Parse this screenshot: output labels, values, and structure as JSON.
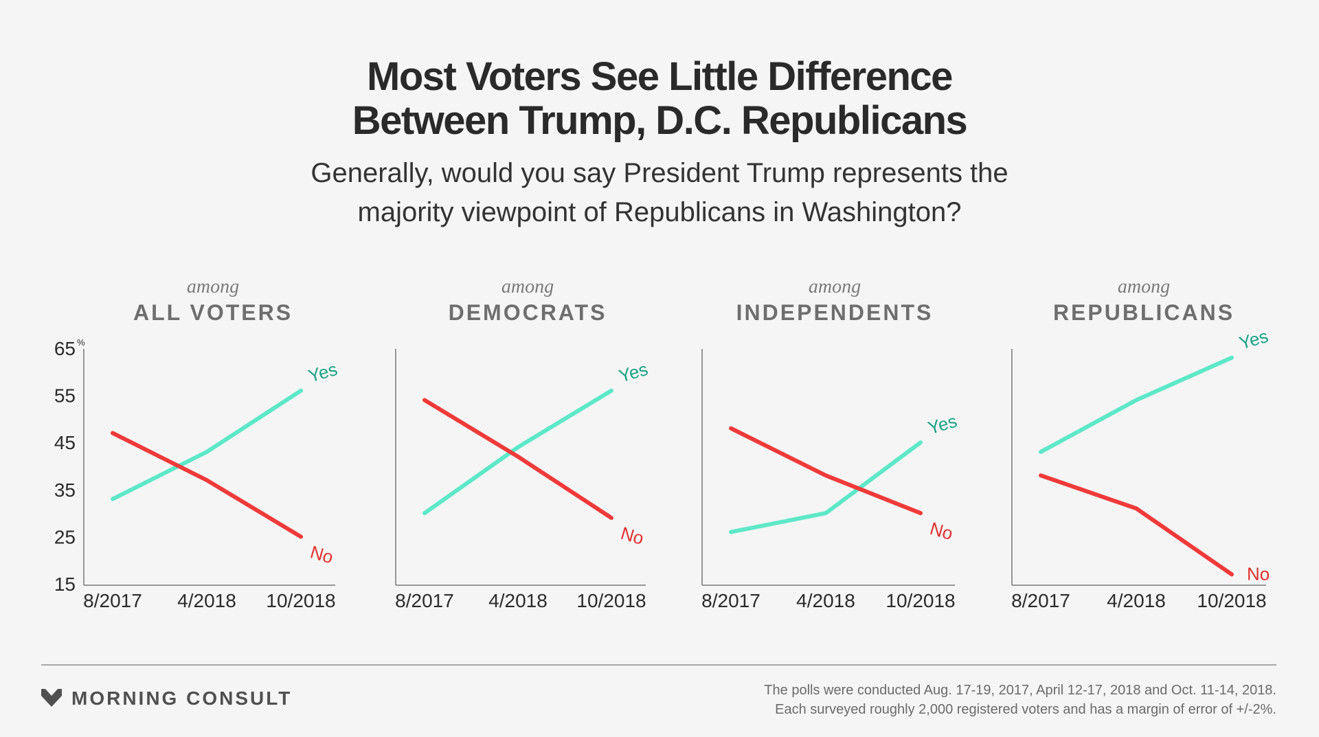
{
  "title_lines": [
    "Most Voters See Little Difference",
    "Between Trump, D.C. Republicans"
  ],
  "subtitle_lines": [
    "Generally, would you say President Trump represents the",
    "majority viewpoint of Republicans in Washington?"
  ],
  "colors": {
    "yes": "#5de8c8",
    "yes_label": "#1aa384",
    "no": "#ef3a3a",
    "no_label": "#e0302e",
    "axis": "#777777",
    "text": "#2b2b2b"
  },
  "chart_data": [
    {
      "type": "line",
      "kicker": "among",
      "title": "ALL VOTERS",
      "x": [
        "8/2017",
        "4/2018",
        "10/2018"
      ],
      "yticks": [
        15,
        25,
        35,
        45,
        55,
        65
      ],
      "y_unit": "%",
      "ylim": [
        15,
        65
      ],
      "series": [
        {
          "name": "Yes",
          "values": [
            33,
            43,
            56
          ]
        },
        {
          "name": "No",
          "values": [
            47,
            37,
            25
          ]
        }
      ]
    },
    {
      "type": "line",
      "kicker": "among",
      "title": "DEMOCRATS",
      "x": [
        "8/2017",
        "4/2018",
        "10/2018"
      ],
      "ylim": [
        15,
        65
      ],
      "series": [
        {
          "name": "Yes",
          "values": [
            30,
            44,
            56
          ]
        },
        {
          "name": "No",
          "values": [
            54,
            42,
            29
          ]
        }
      ]
    },
    {
      "type": "line",
      "kicker": "among",
      "title": "INDEPENDENTS",
      "x": [
        "8/2017",
        "4/2018",
        "10/2018"
      ],
      "ylim": [
        15,
        65
      ],
      "series": [
        {
          "name": "Yes",
          "values": [
            26,
            30,
            45
          ]
        },
        {
          "name": "No",
          "values": [
            48,
            38,
            30
          ]
        }
      ]
    },
    {
      "type": "line",
      "kicker": "among",
      "title": "REPUBLICANS",
      "x": [
        "8/2017",
        "4/2018",
        "10/2018"
      ],
      "ylim": [
        15,
        65
      ],
      "series": [
        {
          "name": "Yes",
          "values": [
            43,
            54,
            63
          ]
        },
        {
          "name": "No",
          "values": [
            38,
            31,
            17
          ]
        }
      ]
    }
  ],
  "brand": {
    "name": "MORNING CONSULT",
    "logo_icon": "morning-consult-chevron-icon"
  },
  "footnote_lines": [
    "The polls were conducted Aug. 17-19, 2017, April 12-17, 2018 and Oct. 11-14, 2018.",
    "Each surveyed roughly 2,000 registered voters and has a margin of error of +/-2%."
  ]
}
